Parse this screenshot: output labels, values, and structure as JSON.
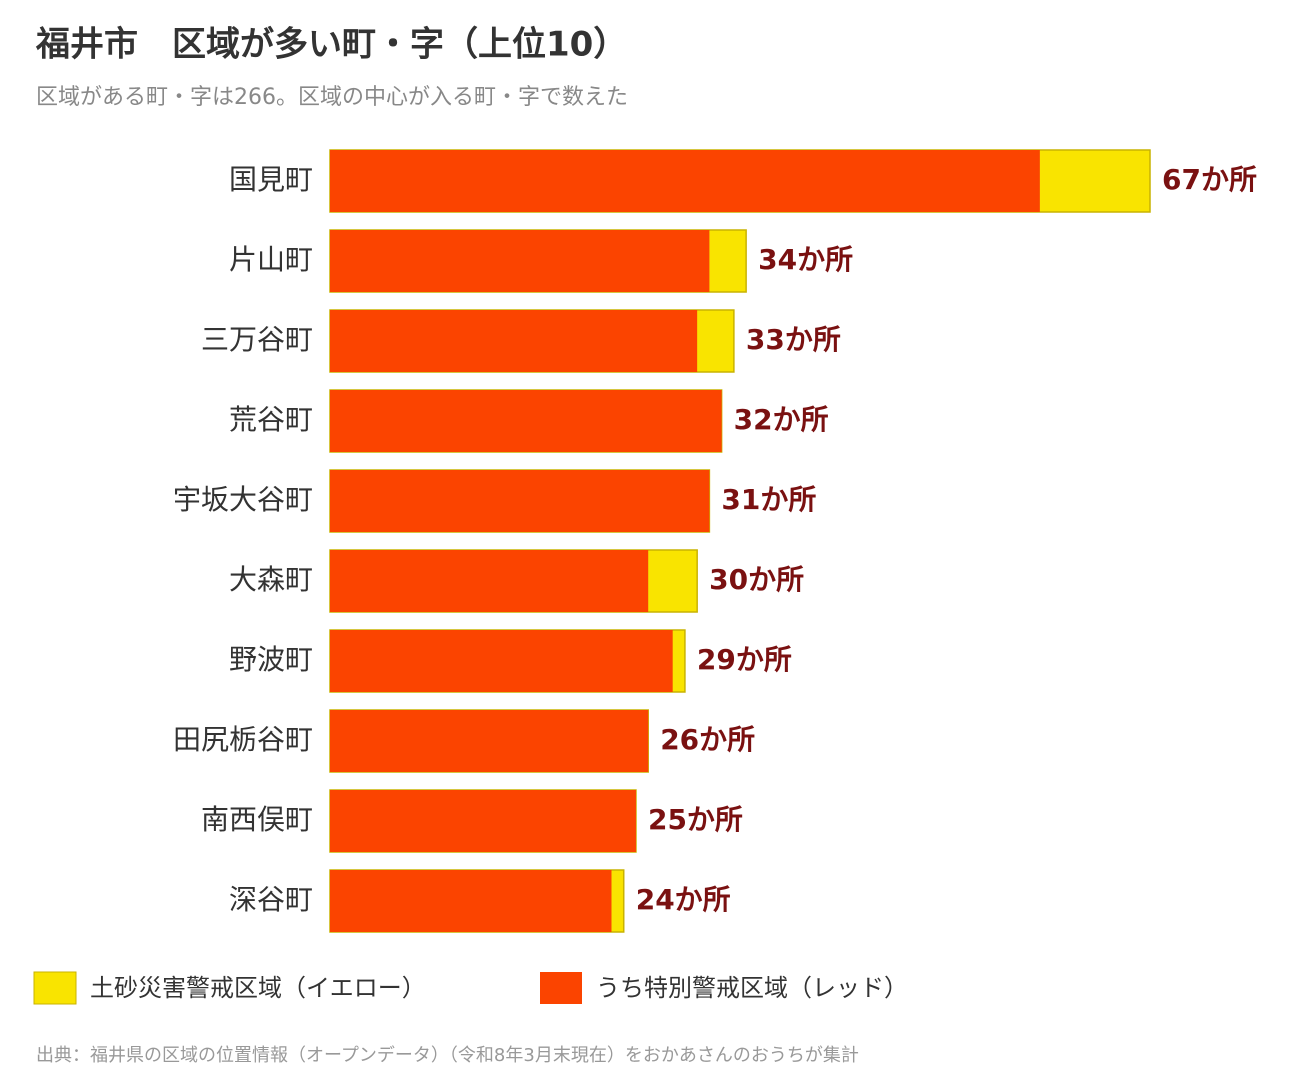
{
  "chart_data": {
    "type": "overlap-bar",
    "title": "福井市　区域が多い町・字（上位10）",
    "subtitle": "区域がある町・字は266。区域の中心が入る町・字で数えた",
    "categories": [
      "国見町",
      "片山町",
      "三万谷町",
      "荒谷町",
      "宇坂大谷町",
      "大森町",
      "野波町",
      "田尻栃谷町",
      "南西俣町",
      "深谷町"
    ],
    "series": [
      {
        "name": "土砂災害警戒区域（イエロー）",
        "color": "#f9e400",
        "values": [
          67,
          34,
          33,
          32,
          31,
          30,
          29,
          26,
          25,
          24
        ],
        "value_labels": [
          "67か所",
          "34か所",
          "33か所",
          "32か所",
          "31か所",
          "30か所",
          "29か所",
          "26か所",
          "25か所",
          "24か所"
        ]
      },
      {
        "name": "うち特別警戒区域（レッド）",
        "color": "#fb4400",
        "values": [
          58,
          31,
          30,
          32,
          31,
          26,
          28,
          26,
          25,
          23
        ]
      }
    ],
    "source": "出典：福井県の区域の位置情報（オープンデータ）（令和8年3月末現在）をおかあさんのおうちが集計"
  }
}
